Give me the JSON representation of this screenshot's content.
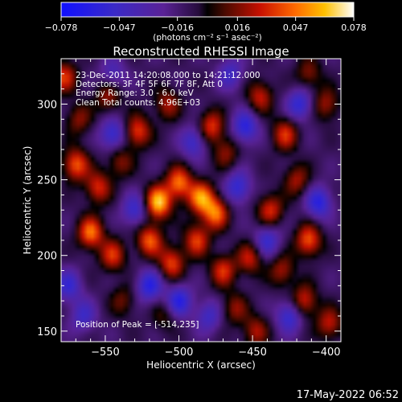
{
  "colorbar": {
    "tick_labels": [
      "-0.078",
      "-0.047",
      "-0.016",
      "0.016",
      "0.047",
      "0.078"
    ],
    "unit_label": "(photons cm⁻² s⁻¹ asec⁻²)",
    "range": [
      -0.078,
      0.078
    ]
  },
  "chart_data": {
    "type": "heatmap",
    "title": "Reconstructed RHESSI Image",
    "xlabel": "Heliocentric X (arcsec)",
    "ylabel": "Heliocentric Y (arcsec)",
    "x_range": [
      -580,
      -390
    ],
    "y_range": [
      143,
      330
    ],
    "x_ticks": [
      -550,
      -500,
      -450,
      -400
    ],
    "y_ticks": [
      150,
      200,
      250,
      300
    ],
    "x_tick_labels": [
      "−550",
      "−500",
      "−450",
      "−400"
    ],
    "y_tick_labels": [
      "150",
      "200",
      "250",
      "300"
    ],
    "annotations": [
      "23-Dec-2011 14:20:08.000 to 14:21:12.000",
      "Detectors: 3F 4F 5F 6F 7F 8F, Att 0",
      "Energy Range: 3.0 - 6.0 keV",
      "Clean    Total counts: 4.96E+03"
    ],
    "peak_label": "Position of Peak = [-514,235]",
    "peak": [
      -514,
      235
    ],
    "value_range": [
      -0.078,
      0.078
    ],
    "grid": false,
    "legend": "colorbar-top",
    "sources": [
      {
        "x": -514,
        "y": 235,
        "v": 0.078
      },
      {
        "x": -500,
        "y": 248,
        "v": 0.06
      },
      {
        "x": -485,
        "y": 238,
        "v": 0.065
      },
      {
        "x": -475,
        "y": 228,
        "v": 0.058
      },
      {
        "x": -520,
        "y": 210,
        "v": 0.055
      },
      {
        "x": -505,
        "y": 195,
        "v": 0.05
      },
      {
        "x": -488,
        "y": 210,
        "v": 0.048
      },
      {
        "x": -470,
        "y": 190,
        "v": 0.045
      },
      {
        "x": -560,
        "y": 215,
        "v": 0.06
      },
      {
        "x": -545,
        "y": 200,
        "v": 0.045
      },
      {
        "x": -570,
        "y": 260,
        "v": 0.055
      },
      {
        "x": -555,
        "y": 245,
        "v": 0.045
      },
      {
        "x": -540,
        "y": 262,
        "v": 0.03
      },
      {
        "x": -528,
        "y": 282,
        "v": 0.05
      },
      {
        "x": -508,
        "y": 300,
        "v": 0.035
      },
      {
        "x": -478,
        "y": 285,
        "v": 0.048
      },
      {
        "x": -468,
        "y": 268,
        "v": 0.03
      },
      {
        "x": -548,
        "y": 305,
        "v": 0.035
      },
      {
        "x": -578,
        "y": 318,
        "v": 0.045
      },
      {
        "x": -568,
        "y": 290,
        "v": 0.03
      },
      {
        "x": -445,
        "y": 305,
        "v": 0.04
      },
      {
        "x": -428,
        "y": 280,
        "v": 0.045
      },
      {
        "x": -420,
        "y": 250,
        "v": 0.035
      },
      {
        "x": -438,
        "y": 230,
        "v": 0.045
      },
      {
        "x": -412,
        "y": 210,
        "v": 0.055
      },
      {
        "x": -452,
        "y": 198,
        "v": 0.04
      },
      {
        "x": -430,
        "y": 190,
        "v": 0.035
      },
      {
        "x": -415,
        "y": 170,
        "v": 0.045
      },
      {
        "x": -462,
        "y": 165,
        "v": 0.03
      },
      {
        "x": -448,
        "y": 150,
        "v": 0.035
      },
      {
        "x": -398,
        "y": 155,
        "v": 0.04
      },
      {
        "x": -400,
        "y": 300,
        "v": 0.035
      },
      {
        "x": -412,
        "y": 320,
        "v": 0.03
      },
      {
        "x": -538,
        "y": 170,
        "v": 0.025
      },
      {
        "x": -510,
        "y": 160,
        "v": 0.02
      },
      {
        "x": -500,
        "y": 170,
        "v": -0.05
      },
      {
        "x": -520,
        "y": 180,
        "v": -0.05
      },
      {
        "x": -530,
        "y": 230,
        "v": -0.04
      },
      {
        "x": -545,
        "y": 280,
        "v": -0.045
      },
      {
        "x": -490,
        "y": 275,
        "v": -0.04
      },
      {
        "x": -460,
        "y": 245,
        "v": -0.045
      },
      {
        "x": -455,
        "y": 285,
        "v": -0.05
      },
      {
        "x": -418,
        "y": 300,
        "v": -0.045
      },
      {
        "x": -405,
        "y": 235,
        "v": -0.05
      },
      {
        "x": -440,
        "y": 210,
        "v": -0.04
      },
      {
        "x": -425,
        "y": 160,
        "v": -0.045
      },
      {
        "x": -575,
        "y": 180,
        "v": -0.04
      },
      {
        "x": -565,
        "y": 160,
        "v": -0.035
      },
      {
        "x": -480,
        "y": 160,
        "v": -0.035
      },
      {
        "x": -545,
        "y": 320,
        "v": -0.03
      },
      {
        "x": -465,
        "y": 320,
        "v": -0.035
      }
    ]
  },
  "footer": {
    "timestamp": "17-May-2022 06:52"
  }
}
